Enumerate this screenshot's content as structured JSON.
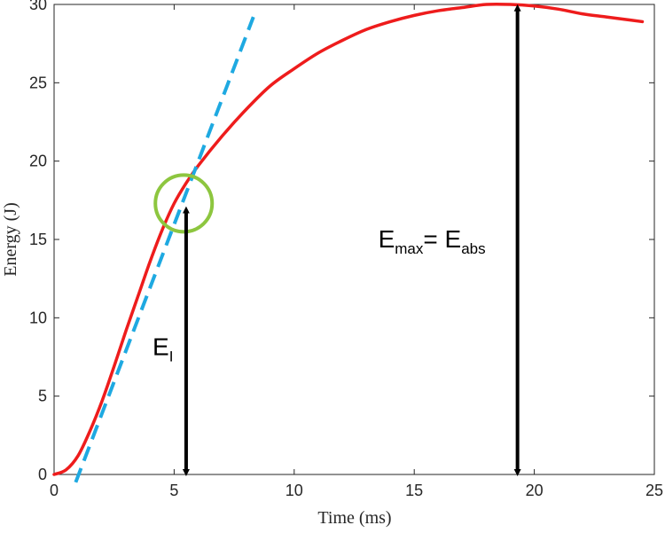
{
  "chart_data": {
    "type": "line",
    "xlabel": "Time (ms)",
    "ylabel": "Energy (J)",
    "xlim": [
      0,
      25
    ],
    "ylim": [
      0,
      30
    ],
    "x_ticks": [
      0,
      5,
      10,
      15,
      20,
      25
    ],
    "y_ticks": [
      0,
      5,
      10,
      15,
      20,
      25,
      30
    ],
    "grid": false,
    "series": [
      {
        "color": "#ee1c1c",
        "style": "solid",
        "x": [
          0,
          0.5,
          1,
          1.5,
          2,
          2.5,
          3,
          3.5,
          4,
          4.5,
          5,
          5.5,
          6,
          7,
          8,
          9,
          10,
          11,
          12,
          13,
          14,
          15,
          16,
          17,
          18,
          19,
          20,
          21,
          22,
          23,
          24,
          24.5
        ],
        "y": [
          0,
          0.3,
          1.2,
          2.8,
          4.7,
          6.9,
          9.2,
          11.4,
          13.6,
          15.6,
          17.3,
          18.6,
          19.7,
          21.6,
          23.3,
          24.8,
          25.9,
          26.9,
          27.7,
          28.4,
          28.9,
          29.3,
          29.6,
          29.8,
          30.0,
          30.0,
          29.9,
          29.7,
          29.4,
          29.2,
          29.0,
          28.9
        ]
      },
      {
        "color": "#1ea9e1",
        "style": "dashed",
        "x": [
          0.9,
          8.3
        ],
        "y": [
          -0.5,
          29.2
        ]
      }
    ],
    "annotations": {
      "circle": {
        "x": 5.4,
        "y": 17.3,
        "color": "#8dc63f"
      },
      "arrow_el": {
        "x": 5.5,
        "y_from": 0,
        "y_to": 17.0
      },
      "arrow_emax": {
        "x": 19.3,
        "y_from": 0,
        "y_to": 29.9
      },
      "label_el": {
        "main": "E",
        "sub": "I",
        "x": 4.1,
        "y": 7.6
      },
      "label_emax": {
        "main1": "E",
        "sub1": "max",
        "eq": "= E",
        "sub2": "abs",
        "x": 13.5,
        "y": 14.5
      }
    }
  }
}
